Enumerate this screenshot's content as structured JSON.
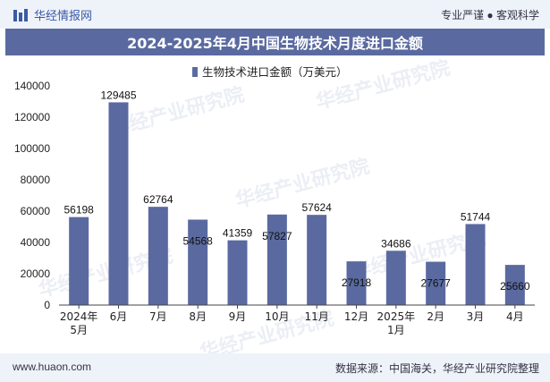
{
  "header": {
    "brand_name": "华经情报网",
    "slogan": "专业严谨 ● 客观科学"
  },
  "colors": {
    "bar": "#5a6aa0",
    "title_bg": "#5a6aa0",
    "bar_bg": "#eef2f9",
    "brand": "#3a5aa5"
  },
  "footer": {
    "website": "www.huaon.com",
    "source": "数据来源：中国海关，华经产业研究院整理"
  },
  "watermark_text": "华经产业研究院",
  "chart_data": {
    "type": "bar",
    "title": "2024-2025年4月中国生物技术月度进口金额",
    "legend": "top-center",
    "grid": false,
    "ylim": [
      0,
      140000
    ],
    "yticks": [
      0,
      20000,
      40000,
      60000,
      80000,
      100000,
      120000,
      140000
    ],
    "categories": [
      [
        "2024年",
        "5月"
      ],
      [
        "6月"
      ],
      [
        "7月"
      ],
      [
        "8月"
      ],
      [
        "9月"
      ],
      [
        "10月"
      ],
      [
        "11月"
      ],
      [
        "12月"
      ],
      [
        "2025年",
        "1月"
      ],
      [
        "2月"
      ],
      [
        "3月"
      ],
      [
        "4月"
      ]
    ],
    "series": [
      {
        "name": "生物技术进口金额（万美元）",
        "values": [
          56198,
          129485,
          62764,
          54568,
          41359,
          57827,
          57624,
          27918,
          34686,
          27677,
          51744,
          25660
        ],
        "label_position": [
          "above",
          "above",
          "above",
          "below",
          "above",
          "below",
          "above",
          "below",
          "above",
          "below",
          "above",
          "below"
        ]
      }
    ]
  }
}
